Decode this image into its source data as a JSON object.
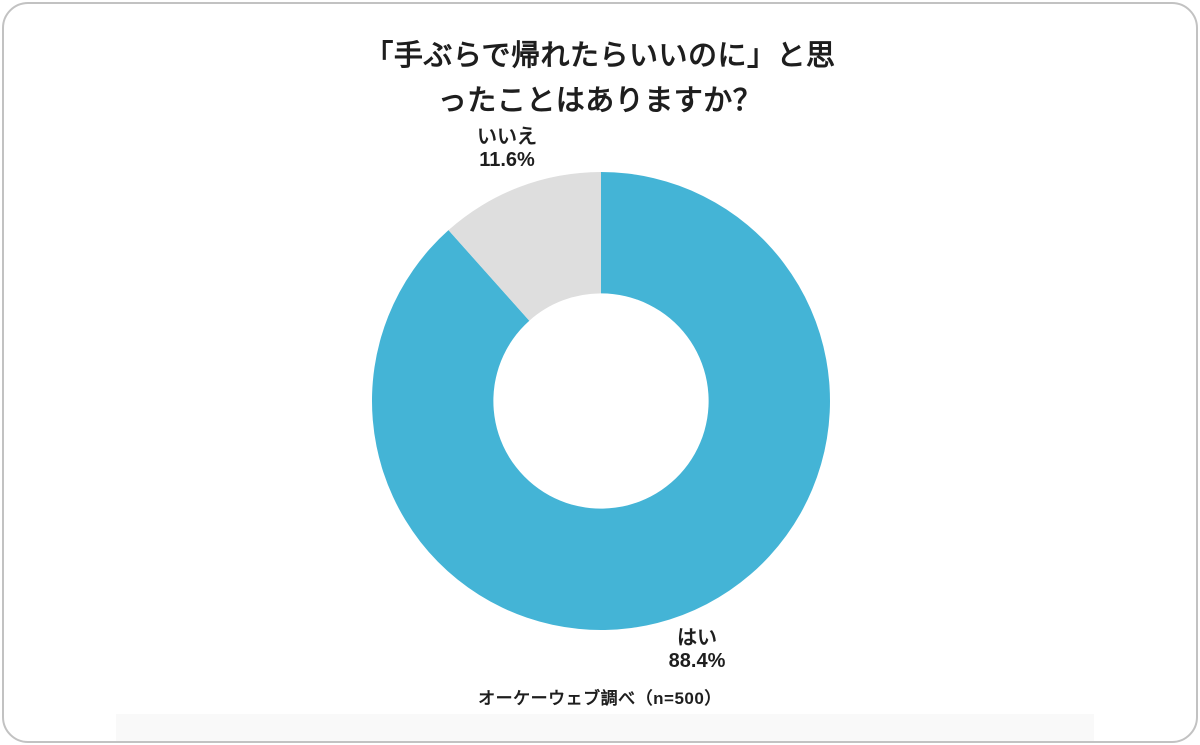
{
  "page": {
    "title_line1": "「手ぶらで帰れたらいいのに」と思",
    "title_line2": "ったことはありますか？",
    "source_note": "オーケーウェブ調べ（n=500）"
  },
  "chart_data": {
    "type": "pie",
    "donut": true,
    "title": "「手ぶらで帰れたらいいのに」と思ったことはありますか？",
    "categories": [
      "はい",
      "いいえ"
    ],
    "values": [
      88.4,
      11.6
    ],
    "value_labels": [
      "88.4%",
      "11.6%"
    ],
    "unit": "%",
    "colors": [
      "#44B4D6",
      "#DEDEDE"
    ],
    "start_angle": "top",
    "direction": "clockwise",
    "inner_radius_ratio": 0.47,
    "legend": "none",
    "sample_size": 500,
    "source_note": "オーケーウェブ調べ（n=500）"
  }
}
